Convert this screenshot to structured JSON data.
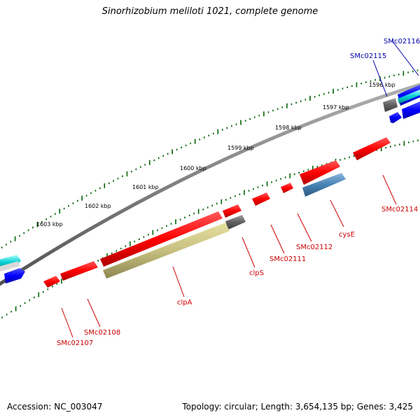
{
  "title": "Sinorhizobium meliloti 1021, complete genome",
  "footer": {
    "accession": "Accession: NC_003047",
    "summary": "Topology: circular; Length: 3,654,135 bp; Genes: 3,425"
  },
  "scale_labels": [
    "1603 kbp",
    "1602 kbp",
    "1601 kbp",
    "1600 kbp",
    "1599 kbp",
    "1598 kbp",
    "1597 kbp",
    "1596 kbp"
  ],
  "gene_labels": {
    "SMc02116": "SMc02116",
    "SMc02115": "SMc02115",
    "SMc02114": "SMc02114",
    "cysE": "cysE",
    "SMc02112": "SMc02112",
    "SMc02111": "SMc02111",
    "clpS": "clpS",
    "clpA": "clpA",
    "SMc02108": "SMc02108",
    "SMc02107": "SMc02107"
  },
  "colors": {
    "backbone": "#808080",
    "forward_gene": "#ff0000",
    "reverse_gene": "#ff0000",
    "clpA": "#bdb76b",
    "cysE": "#4682b4",
    "blue_gene": "#0000ff",
    "cyan_gene": "#00ced1",
    "gray_gene": "#696969",
    "tick": "#006400"
  }
}
